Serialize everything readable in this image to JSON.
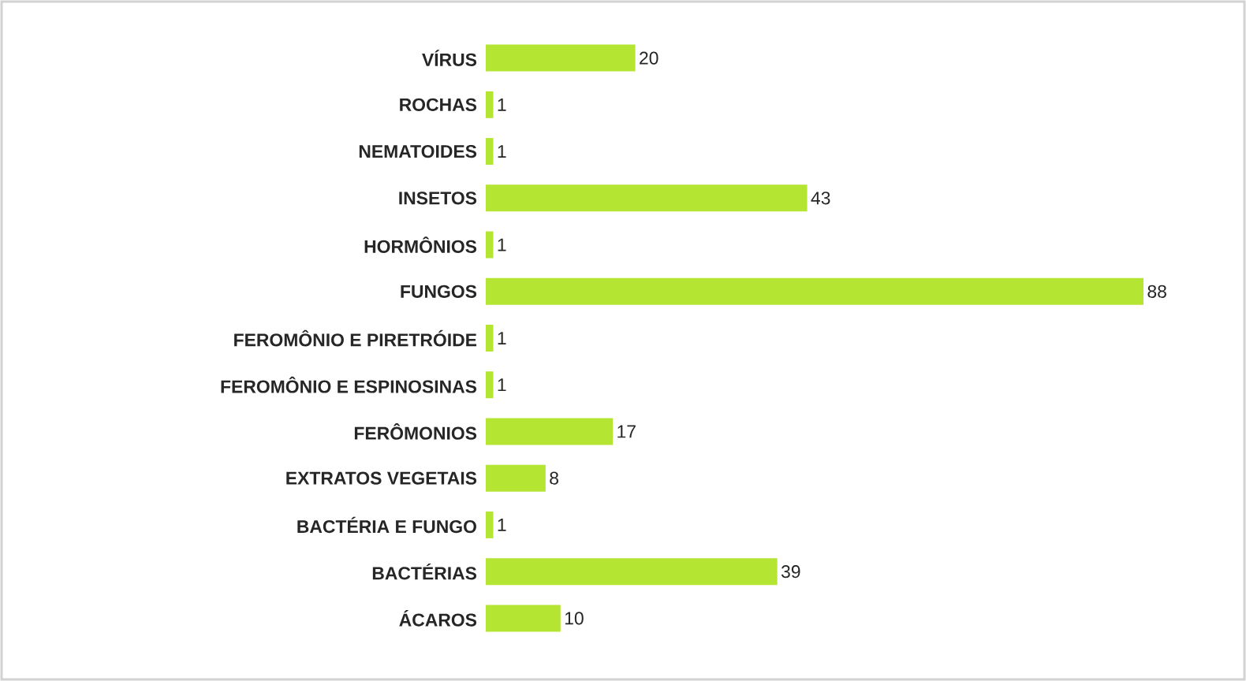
{
  "chart_data": {
    "type": "bar",
    "orientation": "horizontal",
    "data_labels": true,
    "color": "#b5e533",
    "categories": [
      "VÍRUS",
      "ROCHAS",
      "NEMATOIDES",
      "INSETOS",
      "HORMÔNIOS",
      "FUNGOS",
      "FEROMÔNIO E PIRETRÓIDE",
      "FEROMÔNIO E ESPINOSINAS",
      "FERÔMONIOS",
      "EXTRATOS VEGETAIS",
      "BACTÉRIA E FUNGO",
      "BACTÉRIAS",
      "ÁCAROS"
    ],
    "values": [
      20,
      1,
      1,
      43,
      1,
      88,
      1,
      1,
      17,
      8,
      1,
      39,
      10
    ]
  }
}
